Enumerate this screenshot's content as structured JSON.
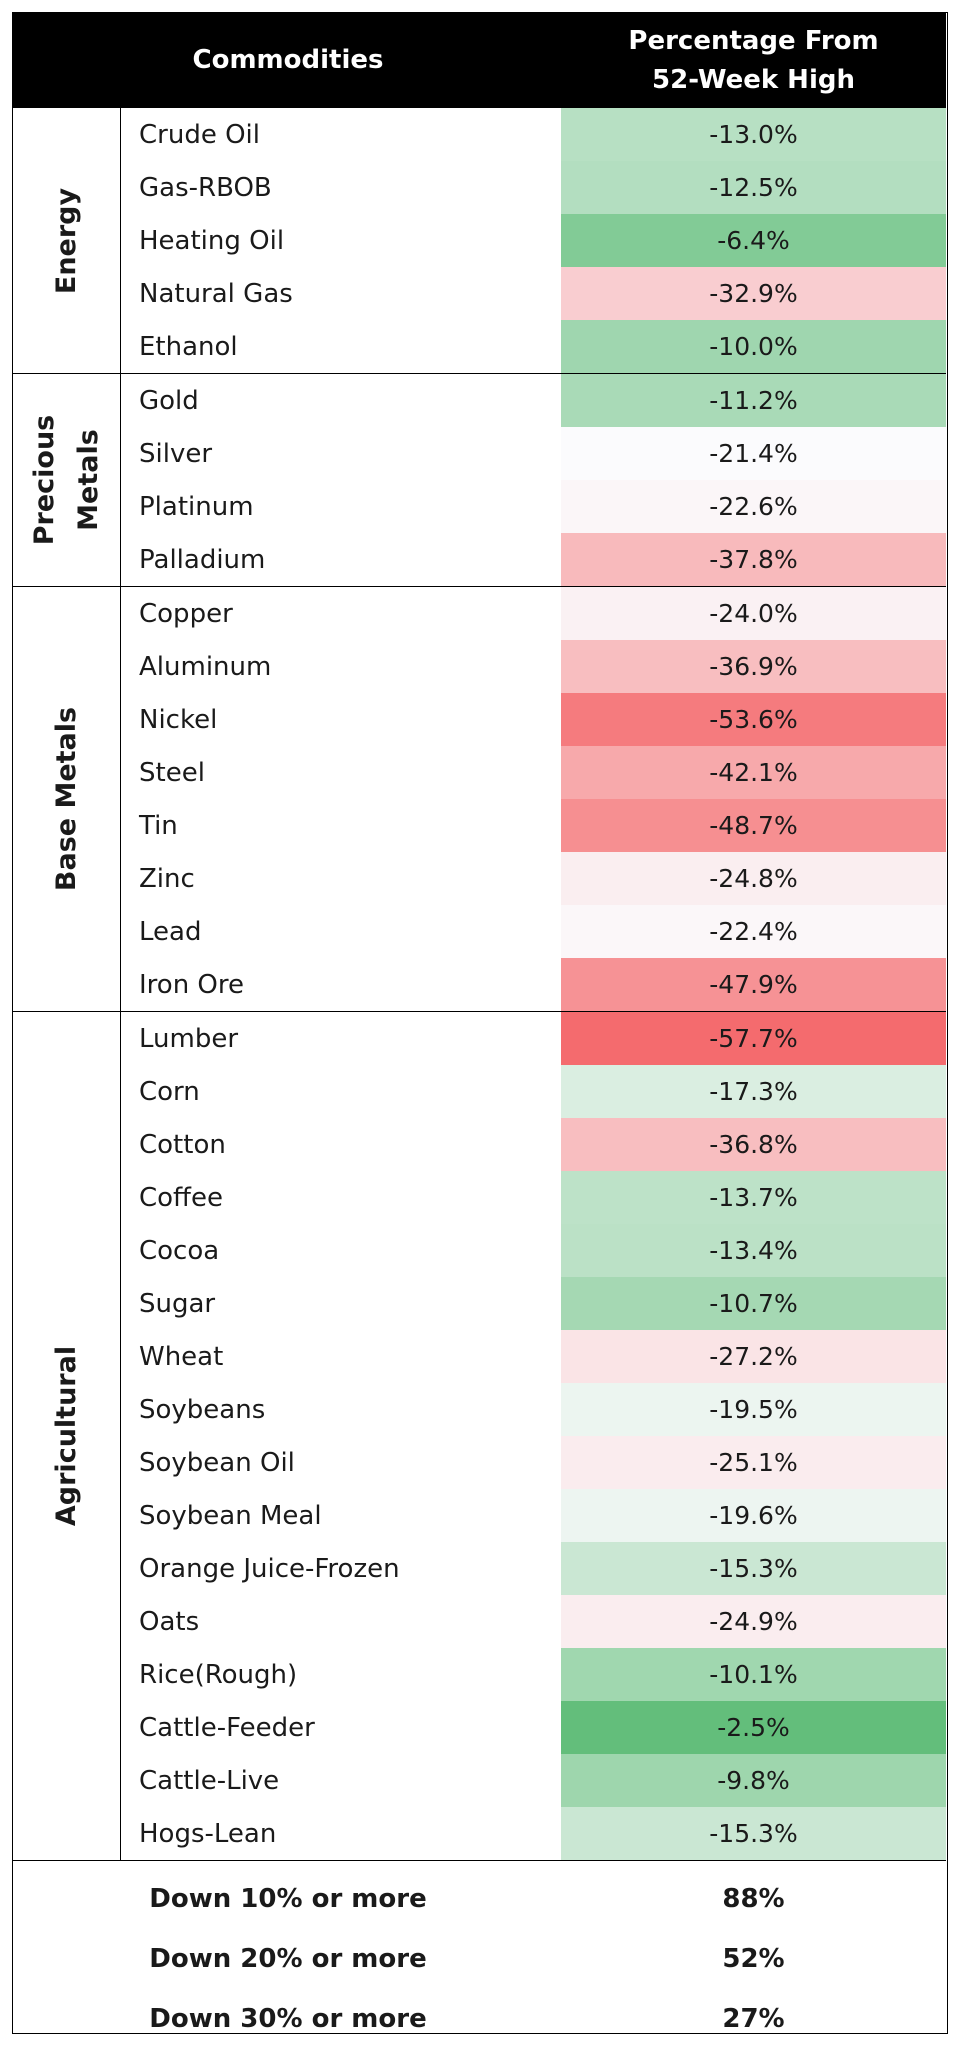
{
  "header": {
    "commodities": "Commodities",
    "percentage_line1": "Percentage From",
    "percentage_line2": "52-Week High"
  },
  "groups": [
    {
      "label_lines": [
        "Energy"
      ],
      "rows": [
        {
          "name": "Crude Oil",
          "value": "-13.0%",
          "pct": -13.0
        },
        {
          "name": "Gas-RBOB",
          "value": "-12.5%",
          "pct": -12.5
        },
        {
          "name": "Heating Oil",
          "value": "-6.4%",
          "pct": -6.4
        },
        {
          "name": "Natural Gas",
          "value": "-32.9%",
          "pct": -32.9
        },
        {
          "name": "Ethanol",
          "value": "-10.0%",
          "pct": -10.0
        }
      ]
    },
    {
      "label_lines": [
        "Precious",
        "Metals"
      ],
      "rows": [
        {
          "name": "Gold",
          "value": "-11.2%",
          "pct": -11.2
        },
        {
          "name": "Silver",
          "value": "-21.4%",
          "pct": -21.4
        },
        {
          "name": "Platinum",
          "value": "-22.6%",
          "pct": -22.6
        },
        {
          "name": "Palladium",
          "value": "-37.8%",
          "pct": -37.8
        }
      ]
    },
    {
      "label_lines": [
        "Base Metals"
      ],
      "rows": [
        {
          "name": "Copper",
          "value": "-24.0%",
          "pct": -24.0
        },
        {
          "name": "Aluminum",
          "value": "-36.9%",
          "pct": -36.9
        },
        {
          "name": "Nickel",
          "value": "-53.6%",
          "pct": -53.6
        },
        {
          "name": "Steel",
          "value": "-42.1%",
          "pct": -42.1
        },
        {
          "name": "Tin",
          "value": "-48.7%",
          "pct": -48.7
        },
        {
          "name": "Zinc",
          "value": "-24.8%",
          "pct": -24.8
        },
        {
          "name": "Lead",
          "value": "-22.4%",
          "pct": -22.4
        },
        {
          "name": "Iron Ore",
          "value": "-47.9%",
          "pct": -47.9
        }
      ]
    },
    {
      "label_lines": [
        "Agricultural"
      ],
      "rows": [
        {
          "name": "Lumber",
          "value": "-57.7%",
          "pct": -57.7
        },
        {
          "name": "Corn",
          "value": "-17.3%",
          "pct": -17.3
        },
        {
          "name": "Cotton",
          "value": "-36.8%",
          "pct": -36.8
        },
        {
          "name": "Coffee",
          "value": "-13.7%",
          "pct": -13.7
        },
        {
          "name": "Cocoa",
          "value": "-13.4%",
          "pct": -13.4
        },
        {
          "name": "Sugar",
          "value": "-10.7%",
          "pct": -10.7
        },
        {
          "name": "Wheat",
          "value": "-27.2%",
          "pct": -27.2
        },
        {
          "name": "Soybeans",
          "value": "-19.5%",
          "pct": -19.5
        },
        {
          "name": "Soybean Oil",
          "value": "-25.1%",
          "pct": -25.1
        },
        {
          "name": "Soybean Meal",
          "value": "-19.6%",
          "pct": -19.6
        },
        {
          "name": "Orange Juice-Frozen",
          "value": "-15.3%",
          "pct": -15.3
        },
        {
          "name": "Oats",
          "value": "-24.9%",
          "pct": -24.9
        },
        {
          "name": "Rice(Rough)",
          "value": "-10.1%",
          "pct": -10.1
        },
        {
          "name": "Cattle-Feeder",
          "value": "-2.5%",
          "pct": -2.5
        },
        {
          "name": "Cattle-Live",
          "value": "-9.8%",
          "pct": -9.8
        },
        {
          "name": "Hogs-Lean",
          "value": "-15.3%",
          "pct": -15.3
        }
      ]
    }
  ],
  "summary": [
    {
      "label": "Down 10% or more",
      "value": "88%"
    },
    {
      "label": "Down 20% or more",
      "value": "52%"
    },
    {
      "label": "Down 30% or more",
      "value": "27%"
    }
  ],
  "colors": {
    "header_bg": "#000000",
    "header_text": "#ffffff",
    "most_negative": "#f46b6e",
    "neutral": "#fbfbfd",
    "least_negative": "#63be7b"
  }
}
